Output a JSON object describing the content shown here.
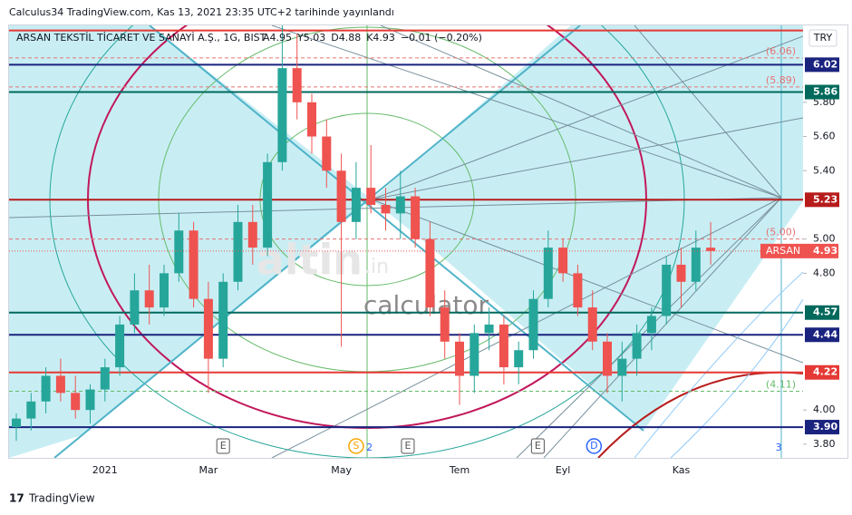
{
  "chart_data": {
    "type": "candlestick",
    "published": "Calculus34 TradingView.com, Kas 13, 2021 23:35 UTC+2 tarihinde yayınlandı",
    "title": "ARSAN TEKSTİL TİCARET VE SANAYİ A.Ş., 1G, BIST",
    "ohlc_text": [
      "A4.95",
      "Y5.03",
      "D4.88",
      "K4.93",
      "−0.01 (−0.20%)"
    ],
    "currency": "TRY",
    "watermark": [
      "altin",
      ".in",
      "calculator"
    ],
    "footer": "TradingView",
    "categories": [
      null,
      null,
      null,
      null,
      null,
      null,
      "2021",
      null,
      null,
      null,
      null,
      null,
      null,
      "Mar",
      null,
      null,
      null,
      null,
      null,
      null,
      null,
      null,
      "May",
      null,
      null,
      null,
      null,
      null,
      null,
      null,
      "Tem",
      null,
      null,
      null,
      null,
      null,
      null,
      "Eyl",
      null,
      null,
      null,
      null,
      null,
      null,
      null,
      "Kas",
      null,
      null
    ],
    "open": [
      3.9,
      3.95,
      4.05,
      4.2,
      4.1,
      4.0,
      4.12,
      4.25,
      4.5,
      4.7,
      4.6,
      4.8,
      5.05,
      4.65,
      4.3,
      4.75,
      5.1,
      4.95,
      5.45,
      6.0,
      5.8,
      5.6,
      5.4,
      5.1,
      5.3,
      5.2,
      5.15,
      5.25,
      5.0,
      4.6,
      4.4,
      4.2,
      4.45,
      4.5,
      4.25,
      4.35,
      4.65,
      4.95,
      4.8,
      4.6,
      4.4,
      4.2,
      4.3,
      4.45,
      4.55,
      4.85,
      4.75,
      4.95
    ],
    "high": [
      3.98,
      4.1,
      4.25,
      4.3,
      4.2,
      4.15,
      4.3,
      4.55,
      4.8,
      4.85,
      4.85,
      5.15,
      5.1,
      4.75,
      4.8,
      5.2,
      5.2,
      5.5,
      6.25,
      6.2,
      5.85,
      5.7,
      5.5,
      5.45,
      5.55,
      5.3,
      5.4,
      5.3,
      5.1,
      4.7,
      4.45,
      4.5,
      4.6,
      4.55,
      4.4,
      4.7,
      5.05,
      5.0,
      4.85,
      4.7,
      4.45,
      4.4,
      4.5,
      4.6,
      4.9,
      4.95,
      5.05,
      5.1
    ],
    "low": [
      3.82,
      3.88,
      3.98,
      4.05,
      3.95,
      3.92,
      4.05,
      4.2,
      4.45,
      4.5,
      4.55,
      4.75,
      4.6,
      4.1,
      4.25,
      4.7,
      4.85,
      4.9,
      5.4,
      5.7,
      5.5,
      5.3,
      4.37,
      5.0,
      5.15,
      5.05,
      5.0,
      4.95,
      4.55,
      4.3,
      4.03,
      4.1,
      4.35,
      4.15,
      4.15,
      4.3,
      4.6,
      4.75,
      4.55,
      4.35,
      4.1,
      4.05,
      4.2,
      4.35,
      4.5,
      4.6,
      4.7,
      4.85
    ],
    "close": [
      3.95,
      4.05,
      4.2,
      4.1,
      4.0,
      4.12,
      4.25,
      4.5,
      4.7,
      4.6,
      4.8,
      5.05,
      4.65,
      4.3,
      4.75,
      5.1,
      4.95,
      5.45,
      6.0,
      5.8,
      5.6,
      5.4,
      5.1,
      5.3,
      5.2,
      5.15,
      5.25,
      5.0,
      4.6,
      4.4,
      4.2,
      4.45,
      4.5,
      4.25,
      4.35,
      4.65,
      4.95,
      4.8,
      4.6,
      4.4,
      4.2,
      4.3,
      4.45,
      4.55,
      4.85,
      4.75,
      4.95,
      4.93
    ],
    "up_color": "#26a69a",
    "down_color": "#ef5350",
    "ylim": [
      3.72,
      6.25
    ],
    "yticks": [
      {
        "value": 3.8,
        "label": "3.80"
      },
      {
        "value": 4.0,
        "label": "4.00"
      },
      {
        "value": 4.8,
        "label": "4.80"
      },
      {
        "value": 5.0,
        "label": "5.00"
      },
      {
        "value": 5.4,
        "label": "5.40"
      },
      {
        "value": 5.6,
        "label": "5.60"
      },
      {
        "value": 5.8,
        "label": "5.80"
      }
    ],
    "levels": [
      {
        "value": 6.22,
        "color": "#e53935",
        "style": "solid",
        "boxed": false
      },
      {
        "value": 6.02,
        "color": "#1a237e",
        "style": "solid",
        "boxed": true
      },
      {
        "value": 5.86,
        "color": "#00695c",
        "style": "solid",
        "boxed": true
      },
      {
        "value": 5.23,
        "color": "#b71c1c",
        "style": "solid",
        "boxed": true
      },
      {
        "value": 4.57,
        "color": "#00695c",
        "style": "solid",
        "boxed": true
      },
      {
        "value": 4.44,
        "color": "#1a237e",
        "style": "solid",
        "boxed": true
      },
      {
        "value": 4.22,
        "color": "#e53935",
        "style": "solid",
        "boxed": true
      },
      {
        "value": 3.9,
        "color": "#1a237e",
        "style": "solid",
        "boxed": true,
        "label": "3.90"
      }
    ],
    "dashed_levels": [
      {
        "value": 6.06,
        "label": "(6.06)",
        "color": "#e57373"
      },
      {
        "value": 5.89,
        "label": "(5.89)",
        "color": "#e57373"
      },
      {
        "value": 5.0,
        "label": "(5.00)",
        "color": "#e57373"
      },
      {
        "value": 4.11,
        "label": "(4.11)",
        "color": "#66bb6a"
      }
    ],
    "last_price": {
      "name": "ARSAN",
      "value": 4.93,
      "color": "#ef5350"
    },
    "events": [
      {
        "label": "E",
        "index": 14
      },
      {
        "label": "S",
        "index": 23
      },
      {
        "label": "2",
        "index": 23.9
      },
      {
        "label": "E",
        "index": 26.5
      },
      {
        "label": "E",
        "index": 35.3
      },
      {
        "label": "D",
        "index": 39.1
      },
      {
        "label": "3",
        "index": 51.6
      }
    ]
  }
}
